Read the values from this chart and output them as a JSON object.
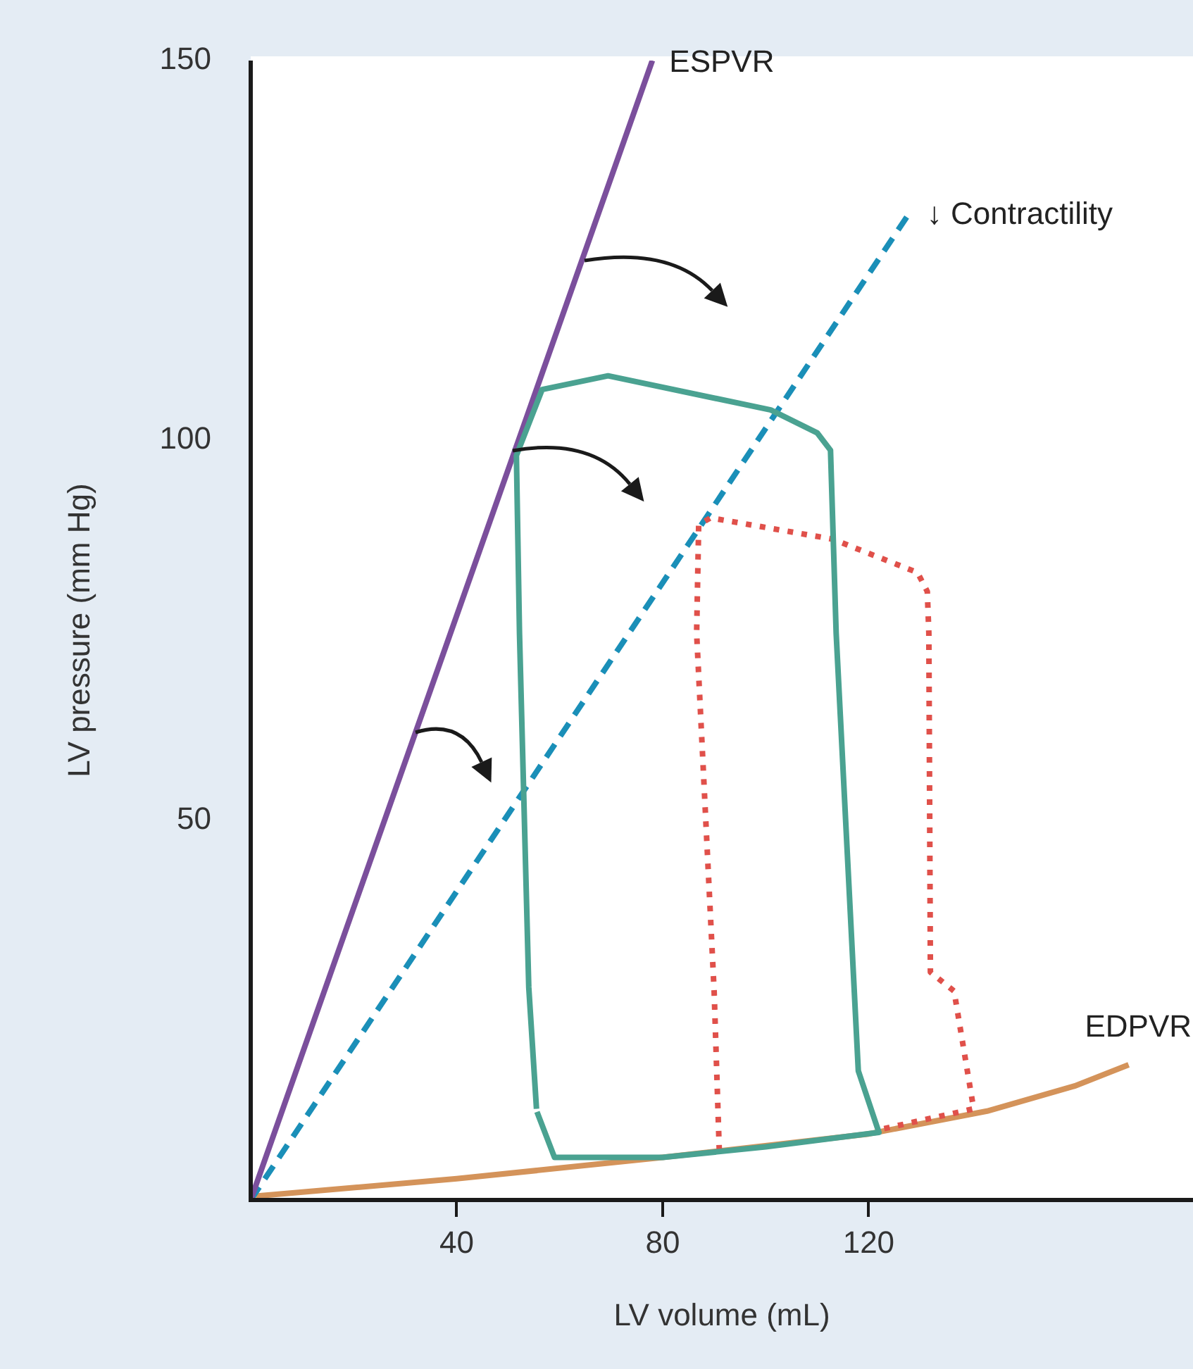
{
  "chart_data": {
    "type": "line",
    "xlabel": "LV volume (mL)",
    "ylabel": "LV pressure (mm Hg)",
    "xlim": [
      0,
      183
    ],
    "ylim": [
      0,
      150
    ],
    "xticks": [
      40,
      80,
      120
    ],
    "yticks": [
      50,
      100,
      150
    ],
    "grid": false,
    "legend": false,
    "marker": "none",
    "series": [
      {
        "name": "ESPVR",
        "color": "#7b4f9c",
        "line_style": "solid",
        "x": [
          0,
          78
        ],
        "values": [
          0,
          150
        ]
      },
      {
        "name": "↓ Contractility",
        "color": "#1a8fb8",
        "line_style": "dashed",
        "x": [
          0,
          128
        ],
        "values": [
          0,
          130
        ]
      },
      {
        "color": "#4aa291",
        "line_style": "solid",
        "x": [
          55.5,
          54,
          52.2,
          51.6,
          56.6,
          69.4,
          101,
          110,
          112.6,
          113.7,
          118,
          122,
          100,
          80,
          59,
          55.6
        ],
        "values": [
          12,
          28,
          74.6,
          98,
          106.7,
          108.5,
          104,
          101,
          98.7,
          74.6,
          17,
          8.9,
          7,
          5.6,
          5.6,
          11.6
        ]
      },
      {
        "color": "#e0504a",
        "line_style": "dotted",
        "x": [
          91,
          90,
          86.6,
          87,
          89.3,
          113,
          129.5,
          131.4,
          131.7,
          132,
          136.6,
          140.4,
          123
        ],
        "values": [
          6.5,
          27.5,
          74.6,
          88.9,
          89.8,
          87,
          82.6,
          80.1,
          74.6,
          30,
          27.5,
          12,
          9.4
        ]
      },
      {
        "name": "EDPVR",
        "color": "#d4935a",
        "line_style": "solid",
        "x": [
          1,
          40,
          80,
          120,
          143,
          160,
          170.5
        ],
        "values": [
          0.5,
          2.8,
          5.6,
          8.7,
          11.7,
          15,
          17.8
        ]
      }
    ]
  }
}
